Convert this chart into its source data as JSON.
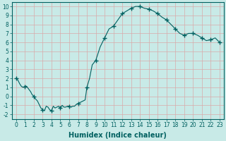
{
  "title": "",
  "xlabel": "Humidex (Indice chaleur)",
  "xlim": [
    -0.5,
    23.5
  ],
  "ylim": [
    -2.5,
    10.5
  ],
  "xtick_vals": [
    0,
    1,
    2,
    3,
    4,
    5,
    6,
    7,
    8,
    9,
    10,
    11,
    12,
    13,
    14,
    15,
    16,
    17,
    18,
    19,
    20,
    21,
    22,
    23
  ],
  "xtick_labels": [
    "0",
    "1",
    "2",
    "3",
    "4",
    "5",
    "6",
    "7",
    "8",
    "9",
    "10",
    "11",
    "12",
    "13",
    "14",
    "15",
    "16",
    "17",
    "18",
    "19",
    "20",
    "21",
    "22",
    "23"
  ],
  "ytick_vals": [
    -2,
    -1,
    0,
    1,
    2,
    3,
    4,
    5,
    6,
    7,
    8,
    9,
    10
  ],
  "ytick_labels": [
    "-2",
    "-1",
    "0",
    "1",
    "2",
    "3",
    "4",
    "5",
    "6",
    "7",
    "8",
    "9",
    "10"
  ],
  "background_color": "#c8eae7",
  "grid_color": "#d8aaaa",
  "line_color": "#006060",
  "x": [
    0,
    0.2,
    0.4,
    0.6,
    0.8,
    1.0,
    1.1,
    1.2,
    1.35,
    1.5,
    1.65,
    1.8,
    2.0,
    2.2,
    2.4,
    2.6,
    2.8,
    3.0,
    3.2,
    3.4,
    3.6,
    3.8,
    4.0,
    4.2,
    4.4,
    4.6,
    4.8,
    5.0,
    5.2,
    5.4,
    5.6,
    5.8,
    6.0,
    6.2,
    6.4,
    6.6,
    6.8,
    7.0,
    7.2,
    7.4,
    7.6,
    7.8,
    8.0,
    8.3,
    8.6,
    9.0,
    9.5,
    10.0,
    10.5,
    11.0,
    11.5,
    12.0,
    12.5,
    13.0,
    13.25,
    13.5,
    14.0,
    14.5,
    15.0,
    15.5,
    16.0,
    16.5,
    17.0,
    17.5,
    18.0,
    18.5,
    19.0,
    19.5,
    20.0,
    20.5,
    21.0,
    21.5,
    22.0,
    22.5,
    23.0
  ],
  "y": [
    2.0,
    1.8,
    1.4,
    1.1,
    1.0,
    1.1,
    1.15,
    1.1,
    0.9,
    0.7,
    0.5,
    0.2,
    0.0,
    -0.3,
    -0.5,
    -0.9,
    -1.3,
    -1.5,
    -1.6,
    -1.1,
    -1.2,
    -1.5,
    -1.6,
    -1.1,
    -1.3,
    -1.2,
    -1.1,
    -1.3,
    -1.0,
    -1.2,
    -1.2,
    -1.1,
    -1.1,
    -1.2,
    -1.1,
    -1.1,
    -0.9,
    -0.8,
    -0.7,
    -0.6,
    -0.5,
    -0.4,
    1.0,
    2.0,
    3.5,
    4.0,
    5.5,
    6.5,
    7.5,
    7.8,
    8.5,
    9.2,
    9.5,
    9.8,
    9.9,
    10.0,
    10.0,
    9.8,
    9.7,
    9.5,
    9.2,
    8.8,
    8.5,
    8.0,
    7.5,
    7.0,
    6.8,
    7.0,
    7.0,
    6.8,
    6.5,
    6.2,
    6.3,
    6.5,
    6.0
  ],
  "marker_x": [
    0,
    1.0,
    2.0,
    3.0,
    4.0,
    5.0,
    6.0,
    7.0,
    8.0,
    9.0,
    10.0,
    11.0,
    12.0,
    13.0,
    14.0,
    15.0,
    16.0,
    17.0,
    18.0,
    19.0,
    20.0,
    21.0,
    22.0,
    23.0
  ],
  "marker_y": [
    2.0,
    1.1,
    0.0,
    -1.5,
    -1.6,
    -1.3,
    -1.1,
    -0.8,
    1.0,
    4.0,
    6.5,
    7.8,
    9.2,
    9.8,
    10.0,
    9.7,
    9.2,
    8.5,
    7.5,
    6.8,
    7.0,
    6.5,
    6.3,
    6.0
  ],
  "xlabel_fontsize": 7,
  "tick_fontsize": 5.5,
  "linewidth": 0.8
}
